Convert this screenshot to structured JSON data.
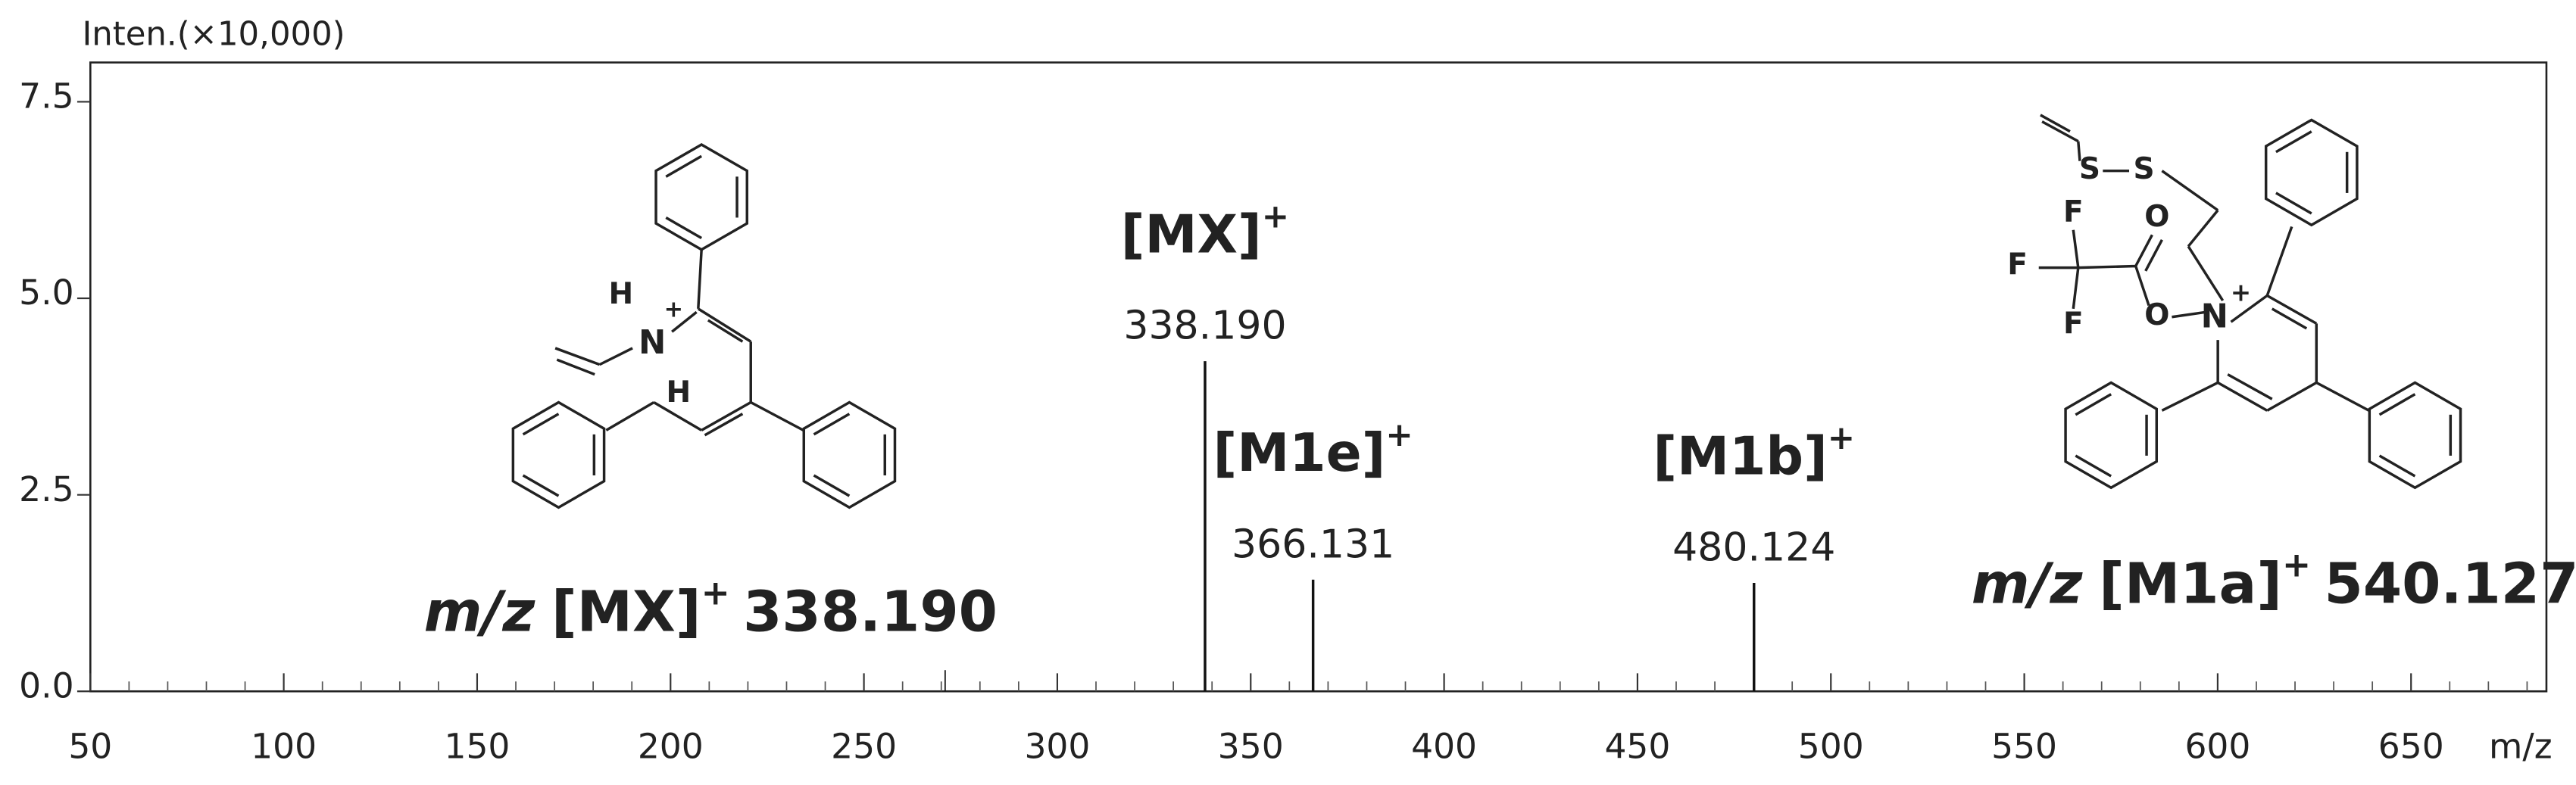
{
  "chart_data": {
    "type": "spectrum",
    "y_label": "Inten.(×10,000)",
    "x_label": "m/z",
    "xlim": [
      50,
      685
    ],
    "ylim": [
      0,
      8.0
    ],
    "xticks": [
      50,
      100,
      150,
      200,
      250,
      300,
      350,
      400,
      450,
      500,
      550,
      600,
      650
    ],
    "x_minor_ticks": [
      60,
      70,
      80,
      90,
      110,
      120,
      130,
      140,
      160,
      170,
      180,
      190,
      210,
      220,
      230,
      240,
      260,
      270,
      280,
      290,
      310,
      320,
      330,
      340,
      360,
      370,
      380,
      390,
      410,
      420,
      430,
      440,
      460,
      470,
      480,
      490,
      510,
      520,
      530,
      540,
      560,
      570,
      580,
      590,
      610,
      620,
      630,
      640,
      660,
      670,
      680
    ],
    "yticks": [
      {
        "value": 0,
        "label": "0.0"
      },
      {
        "value": 2.5,
        "label": "2.5"
      },
      {
        "value": 5.0,
        "label": "5.0"
      },
      {
        "value": 7.5,
        "label": "7.5"
      }
    ],
    "color": "#111111",
    "x": [
      271,
      338.19,
      366.131,
      480.124
    ],
    "values": [
      0.27,
      4.2,
      1.42,
      1.38
    ],
    "x_labels": [
      null,
      "338.190",
      "366.131",
      "480.124"
    ],
    "ions": [
      null,
      "[MX]",
      "[M1e]",
      "[M1b]"
    ],
    "charges": [
      null,
      "+",
      "+",
      "+"
    ]
  },
  "annotations": [
    {
      "prefix": "m/z",
      "ion": "[MX]",
      "charge": "+",
      "value": "338.190"
    },
    {
      "prefix": "m/z",
      "ion": "[M1a]",
      "charge": "+",
      "value": "540.127"
    }
  ],
  "structures": [
    {
      "atoms": [
        "H",
        "+",
        "N",
        "H"
      ]
    },
    {
      "atoms": [
        "S",
        "S",
        "F",
        "O",
        "F",
        "O",
        "N",
        "+",
        "F"
      ]
    }
  ]
}
